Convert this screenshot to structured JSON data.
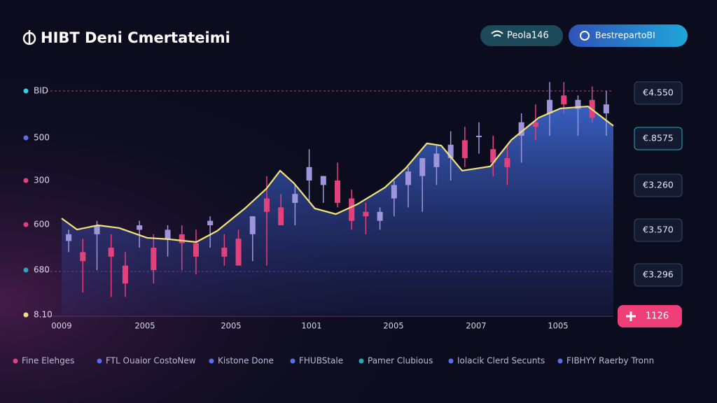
{
  "header": {
    "title": "HIBT Deni Cmertateimi",
    "buttons": [
      "Peola146",
      "BestrepartoBI"
    ]
  },
  "chart_data": {
    "type": "candlestick",
    "y_labels": [
      "BID",
      "500",
      "300",
      "600",
      "680",
      "8.10"
    ],
    "x_labels": [
      "0009",
      "2005",
      "2005",
      "1001",
      "2005",
      "2007",
      "1005"
    ],
    "xlim": [
      0,
      100
    ],
    "ylim": [
      0,
      100
    ],
    "up_color": "#9d96dc",
    "down_color": "#e2417c",
    "line_color": "#f3e27a",
    "candles": {
      "open": [
        33,
        28,
        36,
        30,
        22,
        38,
        30,
        34,
        36,
        32,
        40,
        30,
        34,
        36,
        52,
        48,
        50,
        60,
        58,
        60,
        52,
        46,
        42,
        52,
        58,
        62,
        66,
        70,
        78,
        80,
        74,
        70,
        80,
        86,
        90,
        98,
        92,
        96,
        90
      ],
      "high": [
        38,
        34,
        42,
        36,
        28,
        42,
        36,
        40,
        40,
        38,
        44,
        36,
        38,
        44,
        62,
        54,
        58,
        74,
        62,
        68,
        56,
        50,
        48,
        60,
        66,
        70,
        76,
        82,
        84,
        86,
        80,
        76,
        90,
        94,
        104,
        104,
        98,
        102,
        100
      ],
      "low": [
        28,
        10,
        20,
        8,
        8,
        30,
        14,
        26,
        20,
        18,
        30,
        22,
        22,
        24,
        22,
        40,
        40,
        50,
        50,
        48,
        38,
        36,
        38,
        44,
        48,
        46,
        58,
        60,
        66,
        72,
        62,
        58,
        68,
        78,
        80,
        90,
        80,
        86,
        80
      ],
      "close": [
        36,
        24,
        40,
        26,
        14,
        40,
        20,
        38,
        32,
        26,
        42,
        26,
        22,
        44,
        46,
        40,
        54,
        66,
        62,
        50,
        42,
        44,
        46,
        58,
        64,
        70,
        72,
        76,
        70,
        80,
        68,
        66,
        86,
        84,
        96,
        94,
        96,
        88,
        94
      ]
    },
    "trend": {
      "x": [
        0,
        2.8,
        6.6,
        10.4,
        15.5,
        19.3,
        24.4,
        28.2,
        33.2,
        37.1,
        39.6,
        42.1,
        45.9,
        49.7,
        53.6,
        58.6,
        62.4,
        66.2,
        68.8,
        72.6,
        77.7,
        81.5,
        86.5,
        90.4,
        95.4,
        100
      ],
      "values": [
        43.1,
        38.1,
        40,
        38.8,
        34.4,
        33.8,
        32.5,
        37.5,
        47.5,
        56.3,
        64.4,
        58.8,
        47.5,
        45,
        49.4,
        56.9,
        65.6,
        76.6,
        75.6,
        64.4,
        66.3,
        78.1,
        88.1,
        92.2,
        93.1,
        84.4
      ]
    }
  },
  "price_tags": [
    "€4.550",
    "€.8575",
    "€3.260",
    "€3.570",
    "€3.296"
  ],
  "action_button": "1126",
  "legend": [
    "Fine Elehges",
    "FTL Ouaior CostoNew",
    "Kistone Done",
    "FHUBStale",
    "Pamer Clubious",
    "Iolacik Clerd Secunts",
    "FIBHYY Raerby Tronn"
  ]
}
